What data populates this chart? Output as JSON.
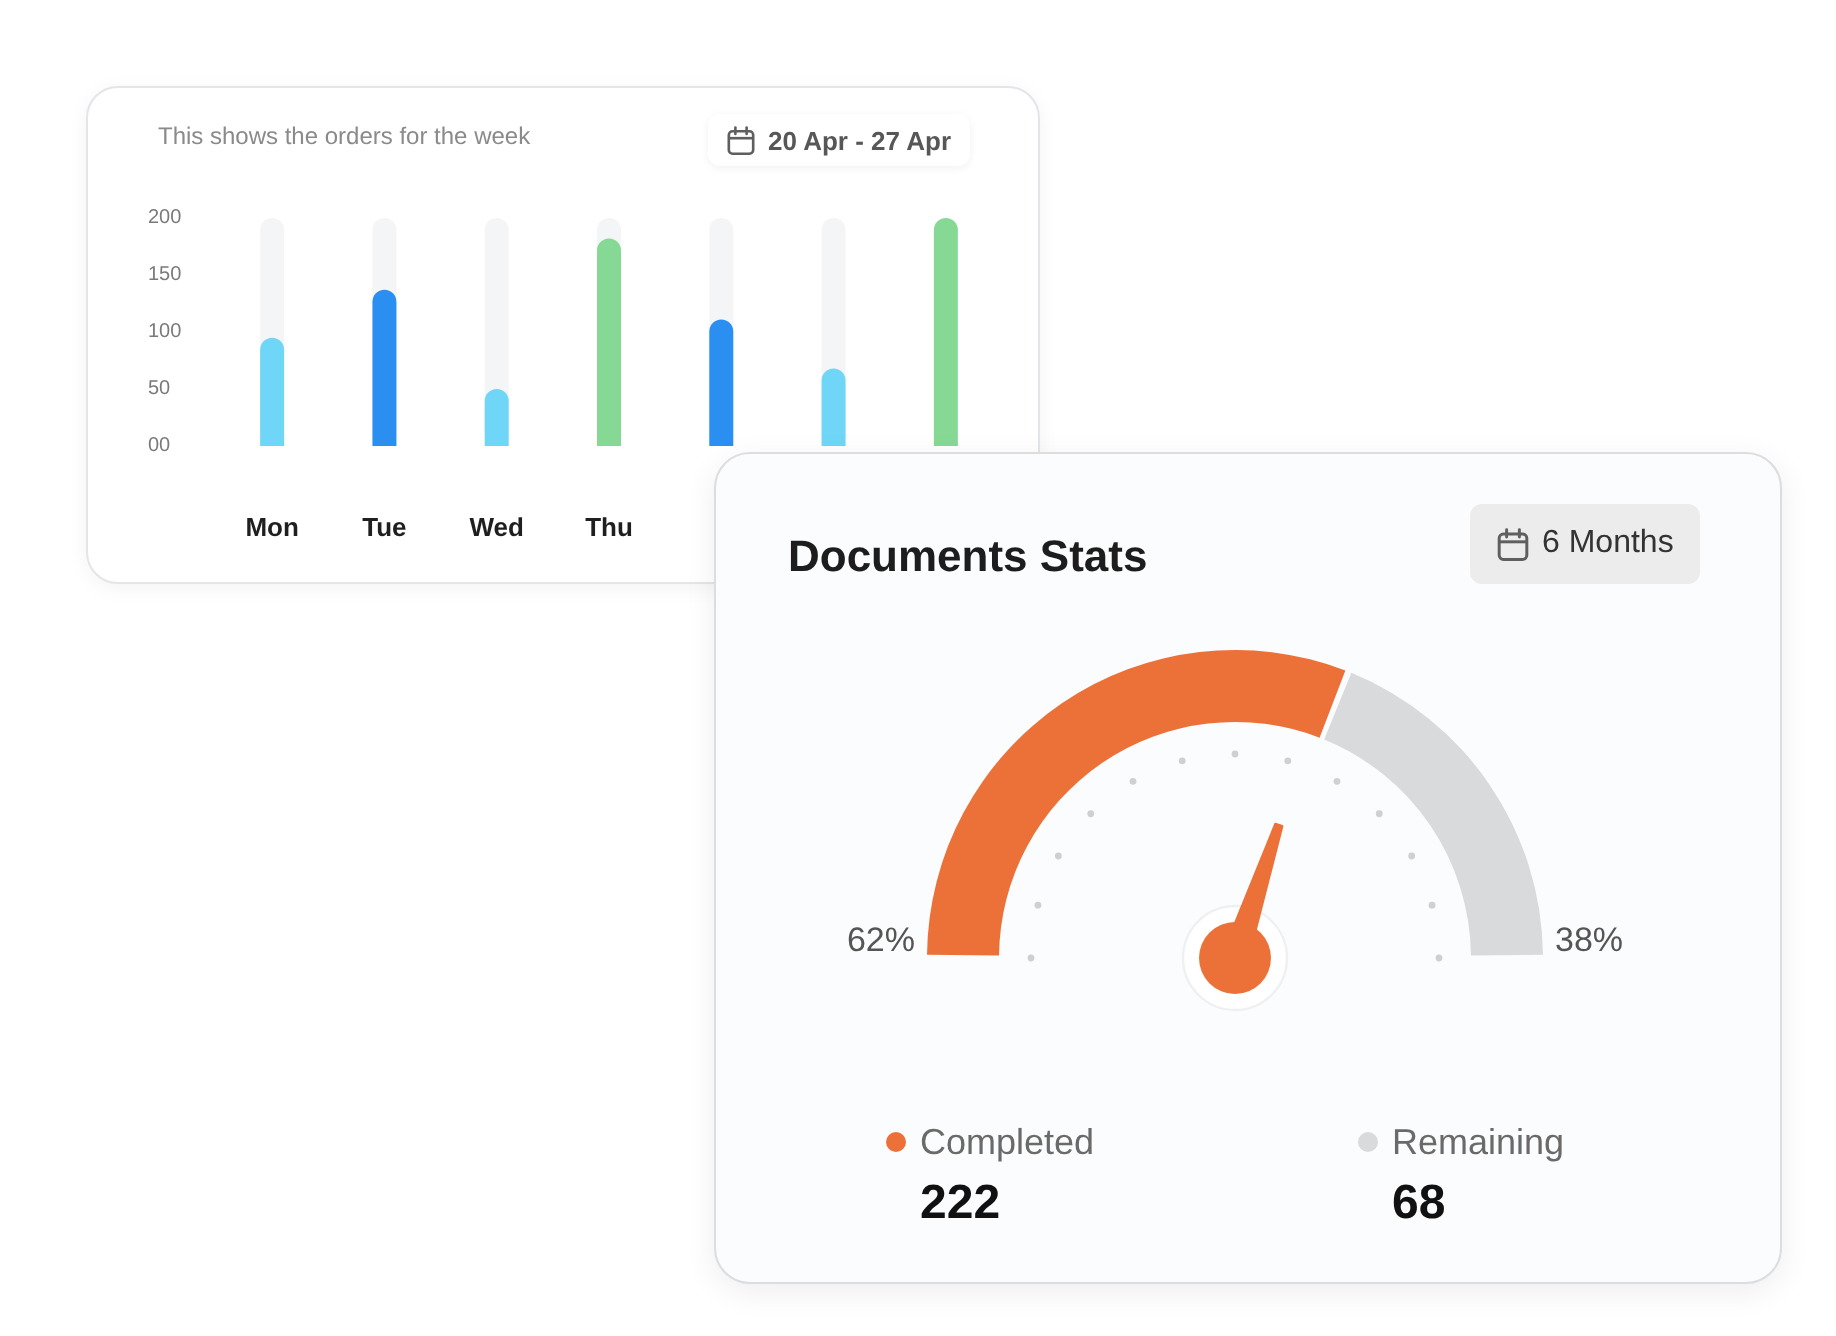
{
  "chart_data": [
    {
      "type": "bar",
      "title": "This shows the orders for the week",
      "annotations": [
        "20 Apr - 27 Apr"
      ],
      "categories": [
        "Mon",
        "Tue",
        "Wed",
        "Thu",
        null,
        null,
        null
      ],
      "values": [
        95,
        137,
        50,
        182,
        111,
        68,
        200
      ],
      "colors": [
        "#6fd6f8",
        "#2a8ff0",
        "#6fd6f8",
        "#86d994",
        "#2a8ff0",
        "#6fd6f8",
        "#86d994"
      ],
      "ylim": [
        0,
        200
      ],
      "yticks": [
        {
          "value": 0,
          "label": "00"
        },
        50,
        100,
        150,
        200
      ],
      "grid": false
    },
    {
      "type": "donut",
      "title": "Documents Stats",
      "annotations": [
        "6 Months",
        "222",
        "68"
      ],
      "categories": [
        "Completed",
        "Remaining"
      ],
      "values": [
        62,
        38
      ],
      "value_labels": [
        "62%",
        "38%"
      ],
      "colors": [
        "#ec7138",
        "#d9dadc"
      ],
      "needle": "Completed",
      "legend": "bottom"
    }
  ]
}
